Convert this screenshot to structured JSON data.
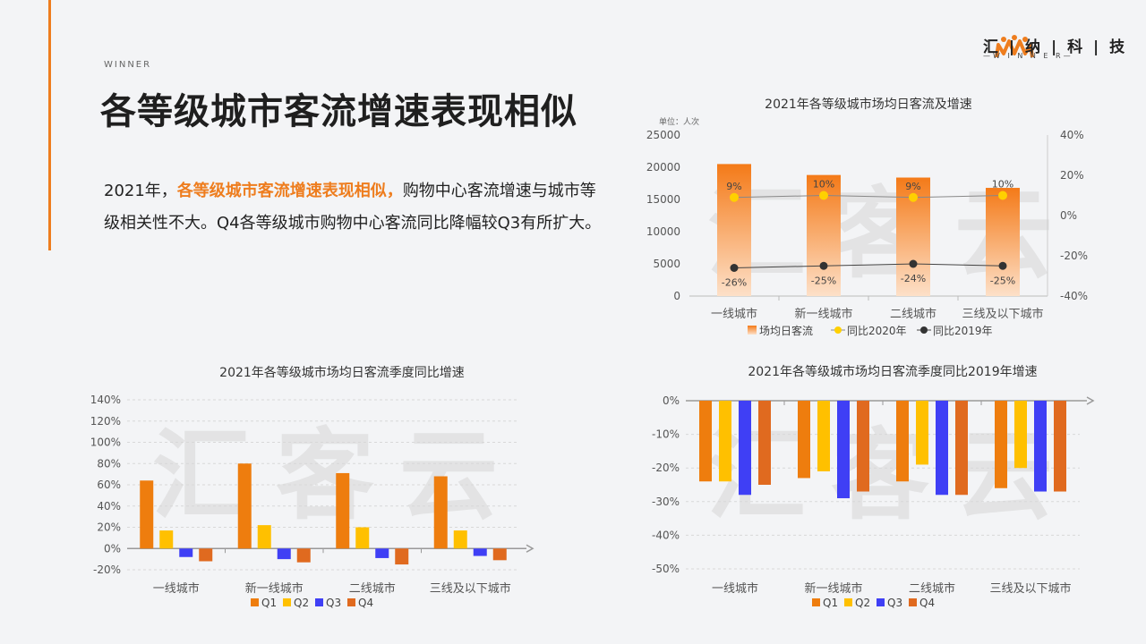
{
  "header": {
    "tag": "WINNER",
    "title": "各等级城市客流增速表现相似",
    "body_pre": "2021年，",
    "body_hl": "各等级城市客流增速表现相似，",
    "body_post": "购物中心客流增速与城市等级相关性不大。Q4各等级城市购物中心客流同比降幅较Q3有所扩大。"
  },
  "logo": {
    "name": "汇 | 纳 | 科 | 技",
    "sub": "—W I N N E R—",
    "color": "#ee7d1e",
    "icon": "winner-logo-icon"
  },
  "watermark": "汇客云",
  "colors": {
    "q1": "#ee7d0e",
    "q2": "#ffc000",
    "q3": "#3f3ff5",
    "q4": "#e06a1f",
    "bar_top": "#f47a18",
    "bar_bottom": "#fde0c8",
    "dot2020": "#ffd000",
    "dot2019": "#333333"
  },
  "chart_data": [
    {
      "type": "bar",
      "title": "2021年各等级城市场均日客流及增速",
      "unit": "单位：人次",
      "categories": [
        "一线城市",
        "新一线城市",
        "二线城市",
        "三线及以下城市"
      ],
      "ylim": [
        0,
        25000
      ],
      "yticks": [
        "0",
        "5000",
        "10000",
        "15000",
        "20000",
        "25000"
      ],
      "y2lim": [
        -40,
        40
      ],
      "y2ticks": [
        "-40%",
        "-20%",
        "0%",
        "20%",
        "40%"
      ],
      "series": [
        {
          "name": "场均日客流",
          "kind": "bar",
          "values": [
            20500,
            18800,
            18400,
            16800
          ]
        },
        {
          "name": "同比2020年",
          "kind": "line",
          "values": [
            9,
            10,
            9,
            10
          ],
          "labels": [
            "9%",
            "10%",
            "9%",
            "10%"
          ]
        },
        {
          "name": "同比2019年",
          "kind": "line",
          "values": [
            -26,
            -25,
            -24,
            -25
          ],
          "labels": [
            "-26%",
            "-25%",
            "-24%",
            "-25%"
          ]
        }
      ]
    },
    {
      "type": "bar",
      "title": "2021年各等级城市场均日客流季度同比增速",
      "categories": [
        "一线城市",
        "新一线城市",
        "二线城市",
        "三线及以下城市"
      ],
      "ylim": [
        -20,
        140
      ],
      "yticks": [
        "-20%",
        "0%",
        "20%",
        "40%",
        "60%",
        "80%",
        "100%",
        "120%",
        "140%"
      ],
      "series": [
        {
          "name": "Q1",
          "values": [
            64,
            80,
            71,
            68
          ]
        },
        {
          "name": "Q2",
          "values": [
            17,
            22,
            20,
            17
          ]
        },
        {
          "name": "Q3",
          "values": [
            -8,
            -10,
            -9,
            -7
          ]
        },
        {
          "name": "Q4",
          "values": [
            -12,
            -13,
            -15,
            -11
          ]
        }
      ]
    },
    {
      "type": "bar",
      "title": "2021年各等级城市场均日客流季度同比2019年增速",
      "categories": [
        "一线城市",
        "新一线城市",
        "二线城市",
        "三线及以下城市"
      ],
      "ylim": [
        -50,
        0
      ],
      "yticks": [
        "-50%",
        "-40%",
        "-30%",
        "-20%",
        "-10%",
        "0%"
      ],
      "series": [
        {
          "name": "Q1",
          "values": [
            -24,
            -23,
            -24,
            -26
          ]
        },
        {
          "name": "Q2",
          "values": [
            -24,
            -21,
            -19,
            -20
          ]
        },
        {
          "name": "Q3",
          "values": [
            -28,
            -29,
            -28,
            -27
          ]
        },
        {
          "name": "Q4",
          "values": [
            -25,
            -27,
            -28,
            -27
          ]
        }
      ]
    }
  ]
}
